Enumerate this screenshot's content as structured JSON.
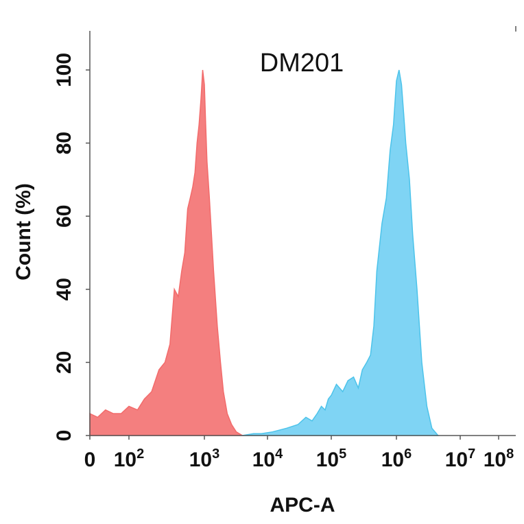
{
  "chart_data": {
    "type": "area",
    "title": "DM201",
    "xlabel": "APC-A",
    "ylabel": "Count  (%)",
    "x_scale": "log",
    "xlim": [
      0,
      100000000
    ],
    "ylim": [
      0,
      100
    ],
    "x_ticks": [
      {
        "value": 0,
        "base": "0",
        "exp": ""
      },
      {
        "value": 100,
        "base": "10",
        "exp": "2"
      },
      {
        "value": 1000,
        "base": "10",
        "exp": "3"
      },
      {
        "value": 10000,
        "base": "10",
        "exp": "4"
      },
      {
        "value": 100000,
        "base": "10",
        "exp": "5"
      },
      {
        "value": 1000000,
        "base": "10",
        "exp": "6"
      },
      {
        "value": 10000000,
        "base": "10",
        "exp": "7"
      },
      {
        "value": 100000000,
        "base": "10",
        "exp": "8"
      }
    ],
    "y_ticks": [
      0,
      20,
      40,
      60,
      80,
      100
    ],
    "grid": false,
    "legend": "none",
    "series": [
      {
        "color": "#f26b6b",
        "fill": "#f47f7f",
        "points": [
          [
            0,
            6
          ],
          [
            20,
            5
          ],
          [
            40,
            7
          ],
          [
            60,
            6
          ],
          [
            80,
            6
          ],
          [
            100,
            8
          ],
          [
            130,
            7
          ],
          [
            160,
            10
          ],
          [
            200,
            12
          ],
          [
            250,
            18
          ],
          [
            300,
            20
          ],
          [
            350,
            25
          ],
          [
            400,
            40
          ],
          [
            450,
            38
          ],
          [
            500,
            45
          ],
          [
            550,
            50
          ],
          [
            600,
            62
          ],
          [
            650,
            65
          ],
          [
            700,
            68
          ],
          [
            750,
            72
          ],
          [
            800,
            80
          ],
          [
            850,
            85
          ],
          [
            900,
            92
          ],
          [
            950,
            100
          ],
          [
            1000,
            96
          ],
          [
            1050,
            85
          ],
          [
            1100,
            75
          ],
          [
            1200,
            65
          ],
          [
            1400,
            45
          ],
          [
            1600,
            30
          ],
          [
            1800,
            20
          ],
          [
            2000,
            12
          ],
          [
            2300,
            6
          ],
          [
            2700,
            3
          ],
          [
            3200,
            1
          ],
          [
            4000,
            0
          ]
        ]
      },
      {
        "color": "#4cc3ea",
        "fill": "#7fd4f4",
        "points": [
          [
            4000,
            0
          ],
          [
            6000,
            0.5
          ],
          [
            8000,
            0.5
          ],
          [
            12000,
            1
          ],
          [
            20000,
            2
          ],
          [
            30000,
            3
          ],
          [
            40000,
            5
          ],
          [
            50000,
            4
          ],
          [
            60000,
            6
          ],
          [
            70000,
            8
          ],
          [
            80000,
            7
          ],
          [
            90000,
            10
          ],
          [
            100000,
            11
          ],
          [
            120000,
            14
          ],
          [
            150000,
            12
          ],
          [
            180000,
            15
          ],
          [
            220000,
            16
          ],
          [
            260000,
            13
          ],
          [
            300000,
            18
          ],
          [
            350000,
            20
          ],
          [
            400000,
            22
          ],
          [
            450000,
            30
          ],
          [
            500000,
            45
          ],
          [
            600000,
            58
          ],
          [
            700000,
            65
          ],
          [
            800000,
            78
          ],
          [
            900000,
            85
          ],
          [
            1000000,
            97
          ],
          [
            1100000,
            100
          ],
          [
            1200000,
            96
          ],
          [
            1300000,
            88
          ],
          [
            1400000,
            80
          ],
          [
            1600000,
            70
          ],
          [
            1800000,
            55
          ],
          [
            2100000,
            40
          ],
          [
            2500000,
            20
          ],
          [
            3000000,
            8
          ],
          [
            3600000,
            2
          ],
          [
            4500000,
            0
          ]
        ]
      }
    ]
  }
}
